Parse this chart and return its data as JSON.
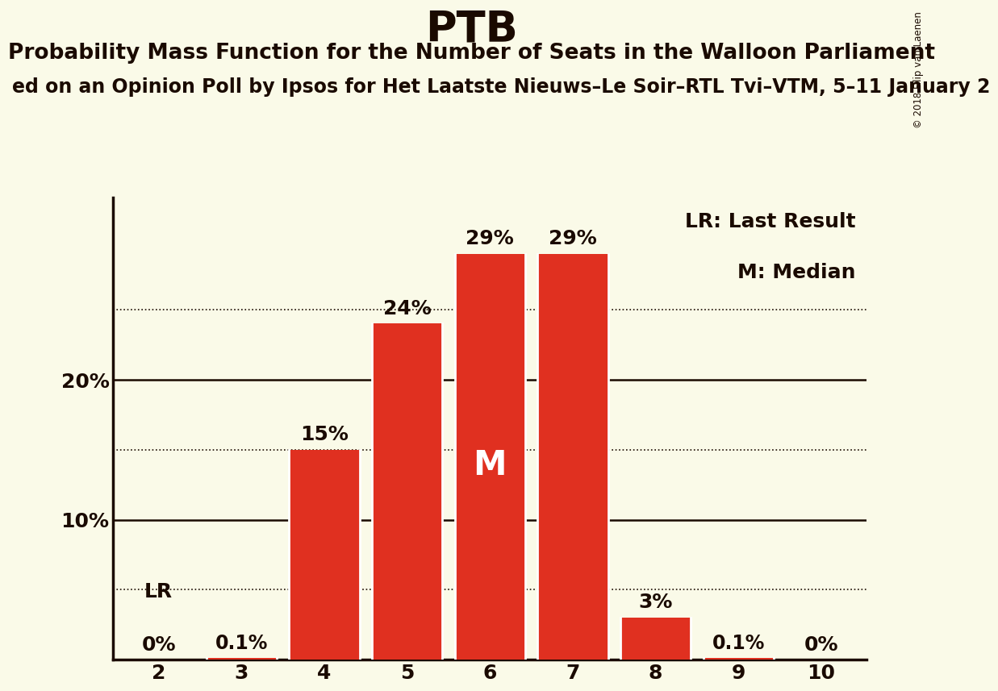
{
  "title": "PTB",
  "subtitle": "Probability Mass Function for the Number of Seats in the Walloon Parliament",
  "source_line": "ed on an Opinion Poll by Ipsos for Het Laatste Nieuws–Le Soir–RTL Tvi–VTM, 5–11 January 2",
  "copyright": "© 2018 Filip van Laenen",
  "seats": [
    2,
    3,
    4,
    5,
    6,
    7,
    8,
    9,
    10
  ],
  "probabilities": [
    0.0,
    0.1,
    15.0,
    24.0,
    29.0,
    29.0,
    3.0,
    0.1,
    0.0
  ],
  "bar_color": "#E03020",
  "background_color": "#FAFAE8",
  "median_seat": 6,
  "lr_seat": 2,
  "label_fontsize": 18,
  "title_fontsize": 38,
  "subtitle_fontsize": 19,
  "source_fontsize": 17,
  "yticks_solid": [
    10,
    20
  ],
  "yticks_dotted": [
    5,
    15,
    25
  ],
  "ylim": [
    0,
    33
  ],
  "text_color": "#1a0a00"
}
